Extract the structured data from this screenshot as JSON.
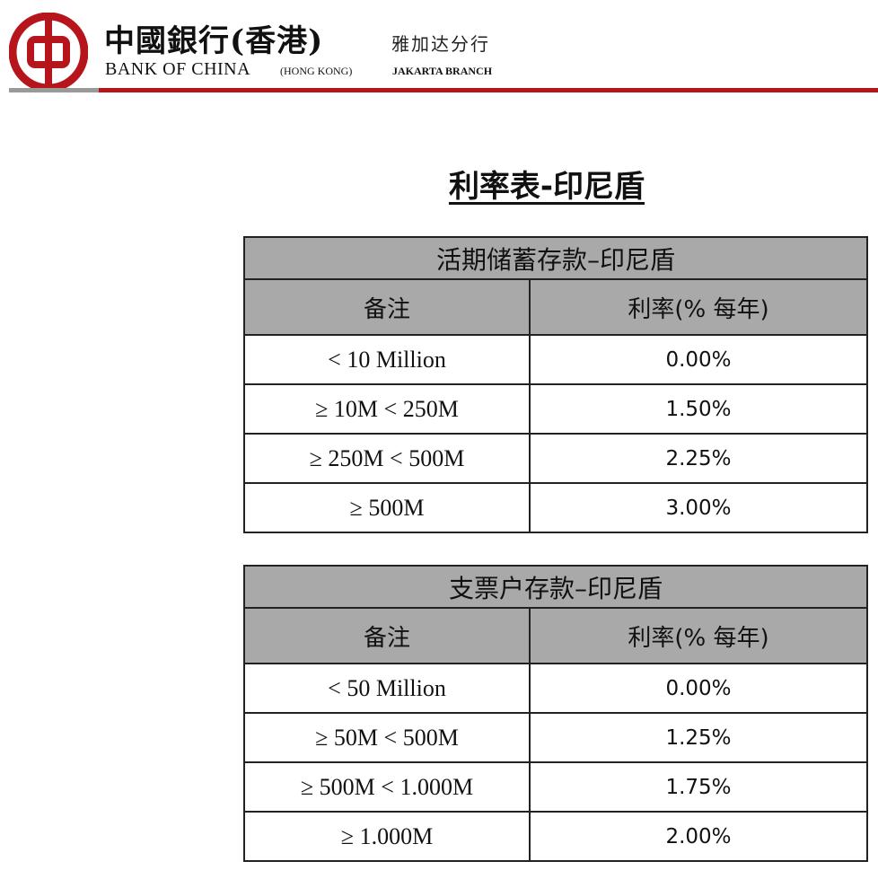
{
  "header": {
    "cn_title": "中國銀行(香港)",
    "cn_branch": "雅加达分行",
    "en_title": "BANK OF CHINA",
    "en_sub": "(HONG KONG)",
    "en_branch": "JAKARTA BRANCH",
    "colors": {
      "brand_red": "#b5151b",
      "gray": "#9a9a9a"
    }
  },
  "page_title": "利率表-印尼盾",
  "tables": [
    {
      "caption": "活期储蓄存款–印尼盾",
      "col_headers": [
        "备注",
        "利率(% 每年)"
      ],
      "rows": [
        [
          "< 10 Million",
          "0.00%"
        ],
        [
          "≥ 10M < 250M",
          "1.50%"
        ],
        [
          "≥ 250M < 500M",
          "2.25%"
        ],
        [
          "≥ 500M",
          "3.00%"
        ]
      ]
    },
    {
      "caption": "支票户存款–印尼盾",
      "col_headers": [
        "备注",
        "利率(% 每年)"
      ],
      "rows": [
        [
          "< 50 Million",
          "0.00%"
        ],
        [
          "≥ 50M < 500M",
          "1.25%"
        ],
        [
          "≥ 500M < 1.000M",
          "1.75%"
        ],
        [
          "≥ 1.000M",
          "2.00%"
        ]
      ]
    }
  ]
}
